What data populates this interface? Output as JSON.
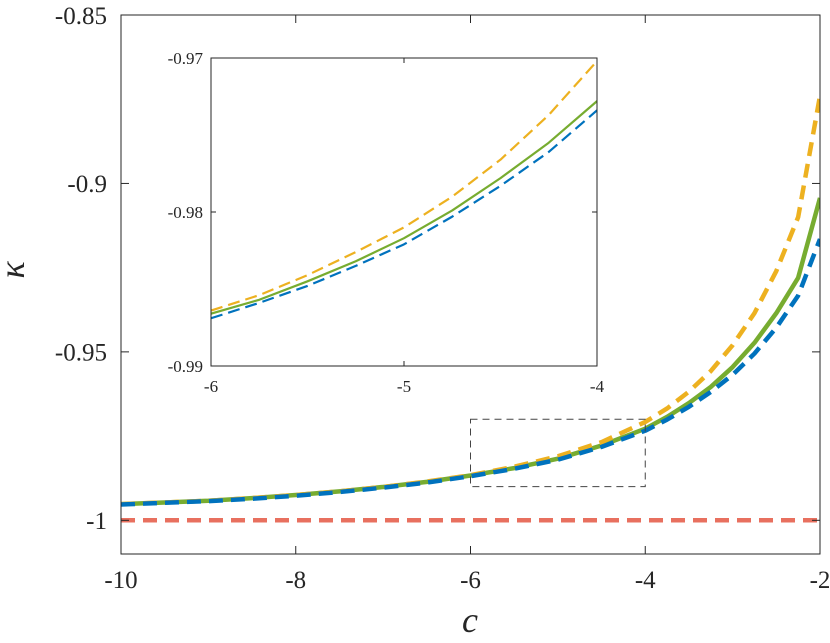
{
  "chart_data": [
    {
      "id": "main",
      "type": "line",
      "xlabel": "c",
      "ylabel": "κ",
      "xlim": [
        -10,
        -2
      ],
      "ylim": [
        -1.01,
        -0.85
      ],
      "xticks": [
        -10,
        -8,
        -6,
        -4,
        -2
      ],
      "yticks": [
        -1,
        -0.95,
        -0.9,
        -0.85
      ],
      "xtick_labels": [
        "-10",
        "-8",
        "-6",
        "-4",
        "-2"
      ],
      "ytick_labels": [
        "-1",
        "-0.95",
        "-0.9",
        "-0.85"
      ],
      "grid": false,
      "x": [
        -10,
        -9.5,
        -9,
        -8.5,
        -8,
        -7.5,
        -7,
        -6.5,
        -6,
        -5.5,
        -5,
        -4.5,
        -4,
        -3.75,
        -3.5,
        -3.25,
        -3,
        -2.75,
        -2.5,
        -2.25,
        -2
      ],
      "series": [
        {
          "color": "#77AC30",
          "style": "solid",
          "values": [
            -0.9952,
            -0.9947,
            -0.9942,
            -0.9934,
            -0.9925,
            -0.9914,
            -0.9901,
            -0.9886,
            -0.9867,
            -0.9845,
            -0.9817,
            -0.9778,
            -0.9728,
            -0.9693,
            -0.9652,
            -0.9604,
            -0.9545,
            -0.9473,
            -0.9385,
            -0.928,
            -0.9043
          ]
        },
        {
          "color": "#EDB120",
          "style": "dashed",
          "values": [
            -0.9952,
            -0.9947,
            -0.9942,
            -0.9934,
            -0.9925,
            -0.9914,
            -0.9901,
            -0.9885,
            -0.9866,
            -0.9841,
            -0.981,
            -0.9768,
            -0.9708,
            -0.9668,
            -0.9618,
            -0.9557,
            -0.948,
            -0.9385,
            -0.926,
            -0.91,
            -0.874
          ]
        },
        {
          "color": "#0072BD",
          "style": "dashed",
          "values": [
            -0.9953,
            -0.9948,
            -0.9943,
            -0.9936,
            -0.9927,
            -0.9916,
            -0.9903,
            -0.9888,
            -0.9869,
            -0.9847,
            -0.982,
            -0.9782,
            -0.9734,
            -0.9701,
            -0.9663,
            -0.9619,
            -0.9568,
            -0.9505,
            -0.9428,
            -0.9333,
            -0.9165
          ]
        },
        {
          "color": "#E8705F",
          "style": "dashed",
          "values": [
            -1,
            -1,
            -1,
            -1,
            -1,
            -1,
            -1,
            -1,
            -1,
            -1,
            -1,
            -1,
            -1,
            -1,
            -1,
            -1,
            -1,
            -1,
            -1,
            -1,
            -1
          ]
        }
      ],
      "zoom_box": {
        "x": [
          -6,
          -4
        ],
        "y": [
          -0.99,
          -0.97
        ]
      }
    },
    {
      "id": "inset",
      "type": "line",
      "xlim": [
        -6,
        -4
      ],
      "ylim": [
        -0.99,
        -0.97
      ],
      "xticks": [
        -6,
        -5,
        -4
      ],
      "yticks": [
        -0.99,
        -0.98,
        -0.97
      ],
      "xtick_labels": [
        "-6",
        "-5",
        "-4"
      ],
      "ytick_labels": [
        "-0.99",
        "-0.98",
        "-0.97"
      ],
      "grid": false,
      "x": [
        -6,
        -5.75,
        -5.5,
        -5.25,
        -5,
        -4.75,
        -4.5,
        -4.25,
        -4
      ],
      "series": [
        {
          "color": "#77AC30",
          "style": "solid",
          "values": [
            -0.9866,
            -0.9857,
            -0.9845,
            -0.9832,
            -0.9817,
            -0.9799,
            -0.9778,
            -0.9755,
            -0.9728
          ]
        },
        {
          "color": "#EDB120",
          "style": "dashed",
          "values": [
            -0.9864,
            -0.9854,
            -0.9841,
            -0.9826,
            -0.981,
            -0.979,
            -0.9766,
            -0.9737,
            -0.9702
          ]
        },
        {
          "color": "#0072BD",
          "style": "dashed",
          "values": [
            -0.9869,
            -0.9859,
            -0.9848,
            -0.9835,
            -0.9821,
            -0.9803,
            -0.9783,
            -0.9761,
            -0.9734
          ]
        }
      ]
    }
  ]
}
